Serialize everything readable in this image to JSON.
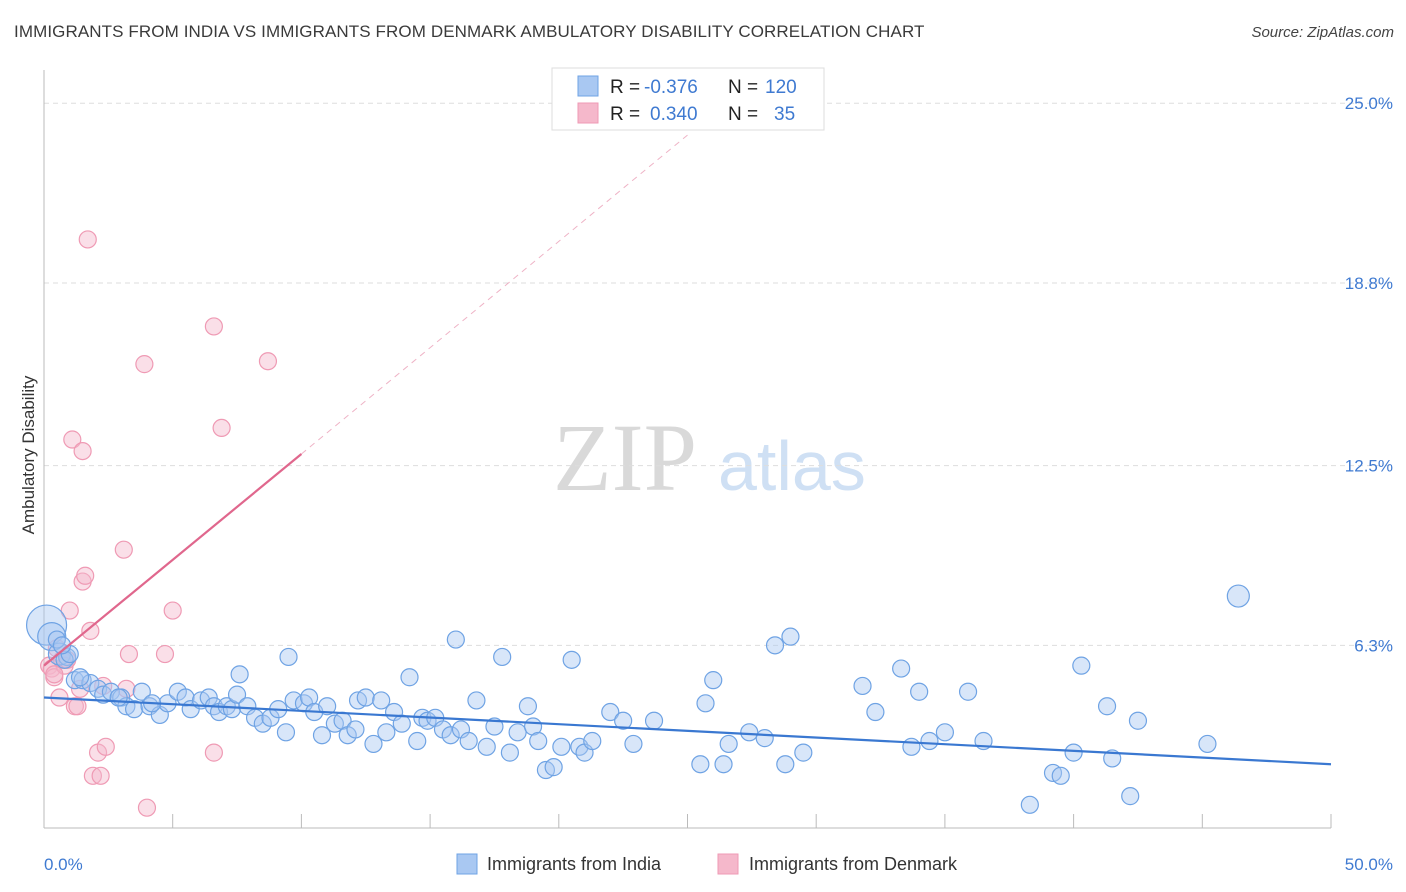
{
  "title": "IMMIGRANTS FROM INDIA VS IMMIGRANTS FROM DENMARK AMBULATORY DISABILITY CORRELATION CHART",
  "source": "Source: ZipAtlas.com",
  "watermark": {
    "zip": "ZIP",
    "atlas": "atlas"
  },
  "legend": {
    "rows": [
      {
        "r_label": "R =",
        "r_value": "-0.376",
        "n_label": "N =",
        "n_value": "120",
        "color": "#a9c8f2"
      },
      {
        "r_label": "R =",
        "r_value": "0.340",
        "n_label": "N =",
        "n_value": "35",
        "color": "#f5b8cb"
      }
    ]
  },
  "chart_data": {
    "type": "scatter",
    "xlabel": "",
    "ylabel": "Ambulatory Disability",
    "xlim": [
      0,
      50
    ],
    "ylim": [
      0,
      25.8
    ],
    "x_tick_labels": [
      {
        "value": 0,
        "label": "0.0%"
      },
      {
        "value": 50,
        "label": "50.0%"
      }
    ],
    "y_tick_labels": [
      {
        "value": 6.3,
        "label": "6.3%"
      },
      {
        "value": 12.5,
        "label": "12.5%"
      },
      {
        "value": 18.8,
        "label": "18.8%"
      },
      {
        "value": 25.0,
        "label": "25.0%"
      }
    ],
    "grid": "horizontal dashed",
    "series": [
      {
        "name": "Immigrants from India",
        "color": "#6fa3e4",
        "fill": "#a9c8f2",
        "trend": {
          "x": [
            0,
            50
          ],
          "y": [
            4.5,
            2.2
          ],
          "color": "#3a78d1"
        },
        "points": [
          [
            0.1,
            7.0
          ],
          [
            0.3,
            6.6
          ],
          [
            0.6,
            6.0
          ],
          [
            0.9,
            5.9
          ],
          [
            0.8,
            5.8
          ],
          [
            1.0,
            6.0
          ],
          [
            1.2,
            5.1
          ],
          [
            1.5,
            5.1
          ],
          [
            1.8,
            5.0
          ],
          [
            2.1,
            4.8
          ],
          [
            2.3,
            4.6
          ],
          [
            2.6,
            4.7
          ],
          [
            3.0,
            4.5
          ],
          [
            3.2,
            4.2
          ],
          [
            3.5,
            4.1
          ],
          [
            3.8,
            4.7
          ],
          [
            4.1,
            4.2
          ],
          [
            4.5,
            3.9
          ],
          [
            4.8,
            4.3
          ],
          [
            5.2,
            4.7
          ],
          [
            5.5,
            4.5
          ],
          [
            5.7,
            4.1
          ],
          [
            6.1,
            4.4
          ],
          [
            6.4,
            4.5
          ],
          [
            6.6,
            4.2
          ],
          [
            6.8,
            4.0
          ],
          [
            7.1,
            4.2
          ],
          [
            7.3,
            4.1
          ],
          [
            7.5,
            4.6
          ],
          [
            7.6,
            5.3
          ],
          [
            7.9,
            4.2
          ],
          [
            8.2,
            3.8
          ],
          [
            8.5,
            3.6
          ],
          [
            8.8,
            3.8
          ],
          [
            9.1,
            4.1
          ],
          [
            9.4,
            3.3
          ],
          [
            9.5,
            5.9
          ],
          [
            9.7,
            4.4
          ],
          [
            10.1,
            4.3
          ],
          [
            10.3,
            4.5
          ],
          [
            10.5,
            4.0
          ],
          [
            10.8,
            3.2
          ],
          [
            11.0,
            4.2
          ],
          [
            11.3,
            3.6
          ],
          [
            11.6,
            3.7
          ],
          [
            11.8,
            3.2
          ],
          [
            12.1,
            3.4
          ],
          [
            12.2,
            4.4
          ],
          [
            12.5,
            4.5
          ],
          [
            12.8,
            2.9
          ],
          [
            13.1,
            4.4
          ],
          [
            13.3,
            3.3
          ],
          [
            13.6,
            4.0
          ],
          [
            13.9,
            3.6
          ],
          [
            14.2,
            5.2
          ],
          [
            14.5,
            3.0
          ],
          [
            14.7,
            3.8
          ],
          [
            14.9,
            3.7
          ],
          [
            15.2,
            3.8
          ],
          [
            15.5,
            3.4
          ],
          [
            15.8,
            3.2
          ],
          [
            16.0,
            6.5
          ],
          [
            16.2,
            3.4
          ],
          [
            16.5,
            3.0
          ],
          [
            16.8,
            4.4
          ],
          [
            17.2,
            2.8
          ],
          [
            17.5,
            3.5
          ],
          [
            17.8,
            5.9
          ],
          [
            18.1,
            2.6
          ],
          [
            18.4,
            3.3
          ],
          [
            18.8,
            4.2
          ],
          [
            19.0,
            3.5
          ],
          [
            19.2,
            3.0
          ],
          [
            19.5,
            2.0
          ],
          [
            19.8,
            2.1
          ],
          [
            20.1,
            2.8
          ],
          [
            20.5,
            5.8
          ],
          [
            20.8,
            2.8
          ],
          [
            21.0,
            2.6
          ],
          [
            21.3,
            3.0
          ],
          [
            22.0,
            4.0
          ],
          [
            22.5,
            3.7
          ],
          [
            22.9,
            2.9
          ],
          [
            23.7,
            3.7
          ],
          [
            25.5,
            2.2
          ],
          [
            25.7,
            4.3
          ],
          [
            26.0,
            5.1
          ],
          [
            26.4,
            2.2
          ],
          [
            26.6,
            2.9
          ],
          [
            27.4,
            3.3
          ],
          [
            28.0,
            3.1
          ],
          [
            28.4,
            6.3
          ],
          [
            28.8,
            2.2
          ],
          [
            29.0,
            6.6
          ],
          [
            29.5,
            2.6
          ],
          [
            31.8,
            4.9
          ],
          [
            32.3,
            4.0
          ],
          [
            33.3,
            5.5
          ],
          [
            33.7,
            2.8
          ],
          [
            34.0,
            4.7
          ],
          [
            34.4,
            3.0
          ],
          [
            35.0,
            3.3
          ],
          [
            35.9,
            4.7
          ],
          [
            36.5,
            3.0
          ],
          [
            38.3,
            0.8
          ],
          [
            39.2,
            1.9
          ],
          [
            39.5,
            1.8
          ],
          [
            40.0,
            2.6
          ],
          [
            40.3,
            5.6
          ],
          [
            41.3,
            4.2
          ],
          [
            41.5,
            2.4
          ],
          [
            42.2,
            1.1
          ],
          [
            42.5,
            3.7
          ],
          [
            45.2,
            2.9
          ],
          [
            46.4,
            8.0
          ],
          [
            0.5,
            6.5
          ],
          [
            0.7,
            6.3
          ],
          [
            1.4,
            5.2
          ],
          [
            2.9,
            4.5
          ],
          [
            4.2,
            4.3
          ]
        ]
      },
      {
        "name": "Immigrants from Denmark",
        "color": "#ef9ab4",
        "fill": "#f5b8cb",
        "trend": {
          "x": [
            0,
            10
          ],
          "y": [
            5.6,
            12.9
          ],
          "dash_to": [
            25.0,
            23.9
          ],
          "color": "#e0678d"
        },
        "points": [
          [
            0.2,
            5.6
          ],
          [
            0.3,
            5.5
          ],
          [
            0.4,
            5.2
          ],
          [
            0.5,
            6.2
          ],
          [
            0.6,
            4.5
          ],
          [
            0.7,
            5.8
          ],
          [
            0.8,
            5.6
          ],
          [
            0.9,
            5.8
          ],
          [
            1.0,
            7.5
          ],
          [
            1.1,
            13.4
          ],
          [
            1.2,
            4.2
          ],
          [
            1.3,
            4.2
          ],
          [
            1.4,
            4.8
          ],
          [
            1.5,
            8.5
          ],
          [
            1.5,
            13.0
          ],
          [
            1.6,
            8.7
          ],
          [
            1.7,
            20.3
          ],
          [
            1.8,
            6.8
          ],
          [
            1.9,
            1.8
          ],
          [
            2.1,
            2.6
          ],
          [
            2.2,
            1.8
          ],
          [
            2.3,
            4.9
          ],
          [
            2.4,
            2.8
          ],
          [
            3.1,
            9.6
          ],
          [
            3.2,
            4.8
          ],
          [
            3.3,
            6.0
          ],
          [
            3.9,
            16.0
          ],
          [
            4.0,
            0.7
          ],
          [
            4.7,
            6.0
          ],
          [
            5.0,
            7.5
          ],
          [
            6.6,
            2.6
          ],
          [
            6.6,
            17.3
          ],
          [
            6.9,
            13.8
          ],
          [
            8.7,
            16.1
          ],
          [
            0.4,
            5.3
          ]
        ]
      }
    ]
  },
  "bottom_legend": [
    {
      "label": "Immigrants from India",
      "color": "#a9c8f2"
    },
    {
      "label": "Immigrants from Denmark",
      "color": "#f5b8cb"
    }
  ]
}
